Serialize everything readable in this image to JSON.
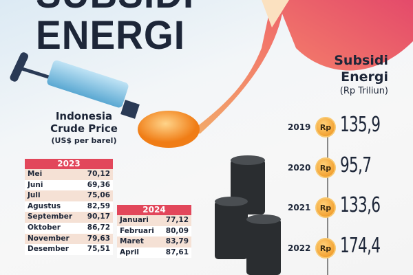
{
  "title": {
    "line1": "SUBSIDI",
    "line2": "ENERGI"
  },
  "crude": {
    "title1": "Indonesia",
    "title2": "Crude Price",
    "unit": "(US$ per barel)",
    "tables": [
      {
        "year": "2023",
        "rows": [
          [
            "Mei",
            "70,12"
          ],
          [
            "Juni",
            "69,36"
          ],
          [
            "Juli",
            "75,06"
          ],
          [
            "Agustus",
            "82,59"
          ],
          [
            "September",
            "90,17"
          ],
          [
            "Oktober",
            "86,72"
          ],
          [
            "November",
            "79,63"
          ],
          [
            "Desember",
            "75,51"
          ]
        ]
      },
      {
        "year": "2024",
        "rows": [
          [
            "Januari",
            "77,12"
          ],
          [
            "Februari",
            "80,09"
          ],
          [
            "Maret",
            "83,79"
          ],
          [
            "April",
            "87,61"
          ]
        ]
      }
    ]
  },
  "subsidy": {
    "title1": "Subsidi",
    "title2": "Energi",
    "unit": "(Rp Triliun)",
    "currency": "Rp",
    "items": [
      {
        "year": "2019",
        "value": "135,9"
      },
      {
        "year": "2020",
        "value": "95,7"
      },
      {
        "year": "2021",
        "value": "133,6"
      },
      {
        "year": "2022",
        "value": "174,4"
      }
    ]
  },
  "colors": {
    "accent": "#e2475b",
    "navy": "#1d2638",
    "coin": "#f3a233"
  }
}
